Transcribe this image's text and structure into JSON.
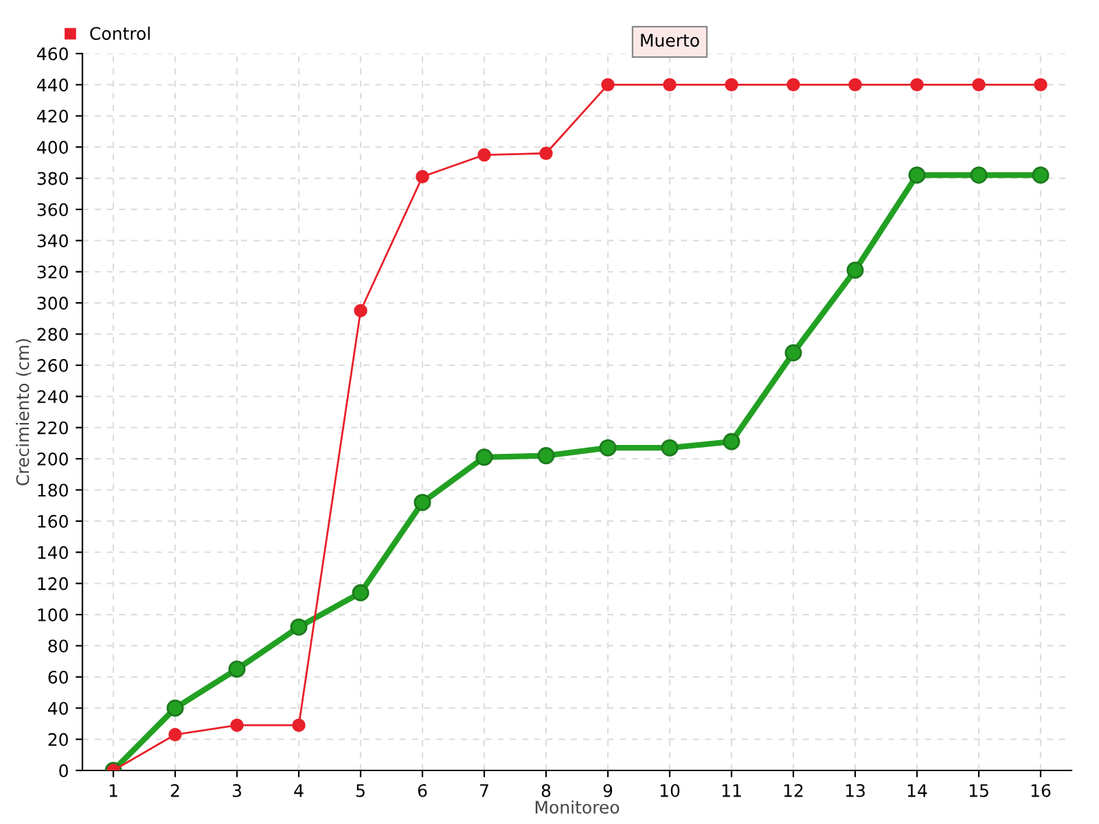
{
  "chart_data": {
    "type": "line",
    "xlabel": "Monitoreo",
    "ylabel": "Crecimiento (cm)",
    "categories": [
      "1",
      "2",
      "3",
      "4",
      "5",
      "6",
      "7",
      "8",
      "9",
      "10",
      "11",
      "12",
      "13",
      "14",
      "15",
      "16"
    ],
    "series": [
      {
        "color": "#22a022",
        "values": [
          0,
          40,
          65,
          92,
          114,
          172,
          201,
          202,
          207,
          207,
          211,
          268,
          321,
          382,
          382,
          382
        ]
      },
      {
        "name": "Control",
        "color": "#e8202a",
        "values": [
          0,
          23,
          29,
          29,
          295,
          381,
          395,
          396,
          440,
          440,
          440,
          440,
          440,
          440,
          440,
          440
        ]
      }
    ],
    "ylim": [
      0,
      460
    ],
    "yticks": [
      0,
      20,
      40,
      60,
      80,
      100,
      120,
      140,
      160,
      180,
      200,
      220,
      240,
      260,
      280,
      300,
      320,
      340,
      360,
      380,
      400,
      420,
      440,
      460
    ],
    "annotations": [
      {
        "text": "Muerto",
        "x": "10",
        "y": 440
      }
    ],
    "grid": true,
    "legend": "top left",
    "marker": "circle"
  }
}
